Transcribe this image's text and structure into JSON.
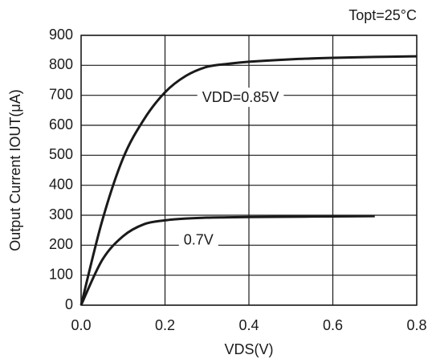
{
  "chart_data": {
    "type": "line",
    "annotation": "Topt=25°C",
    "xlabel": "VDS(V)",
    "ylabel": "Output Current IOUT(μA)",
    "x": [
      0,
      0.05,
      0.1,
      0.15,
      0.2,
      0.25,
      0.3,
      0.35,
      0.4,
      0.5,
      0.6,
      0.7,
      0.8
    ],
    "series": [
      {
        "name": "VDD=0.85V",
        "color": "#1a1a1a",
        "values": [
          0,
          280,
          490,
          620,
          710,
          765,
          795,
          805,
          812,
          820,
          825,
          828,
          830
        ]
      },
      {
        "name": "0.7V",
        "color": "#1a1a1a",
        "values": [
          0,
          150,
          230,
          270,
          283,
          289,
          292,
          293,
          294,
          295,
          296,
          297,
          null
        ]
      }
    ],
    "xlim": [
      0,
      0.8
    ],
    "ylim": [
      0,
      900
    ],
    "xticks": [
      {
        "value": 0,
        "label": "0.0"
      },
      0.2,
      0.4,
      0.6,
      0.8
    ],
    "yticks": [
      0,
      100,
      200,
      300,
      400,
      500,
      600,
      700,
      800,
      900
    ],
    "grid": true
  }
}
